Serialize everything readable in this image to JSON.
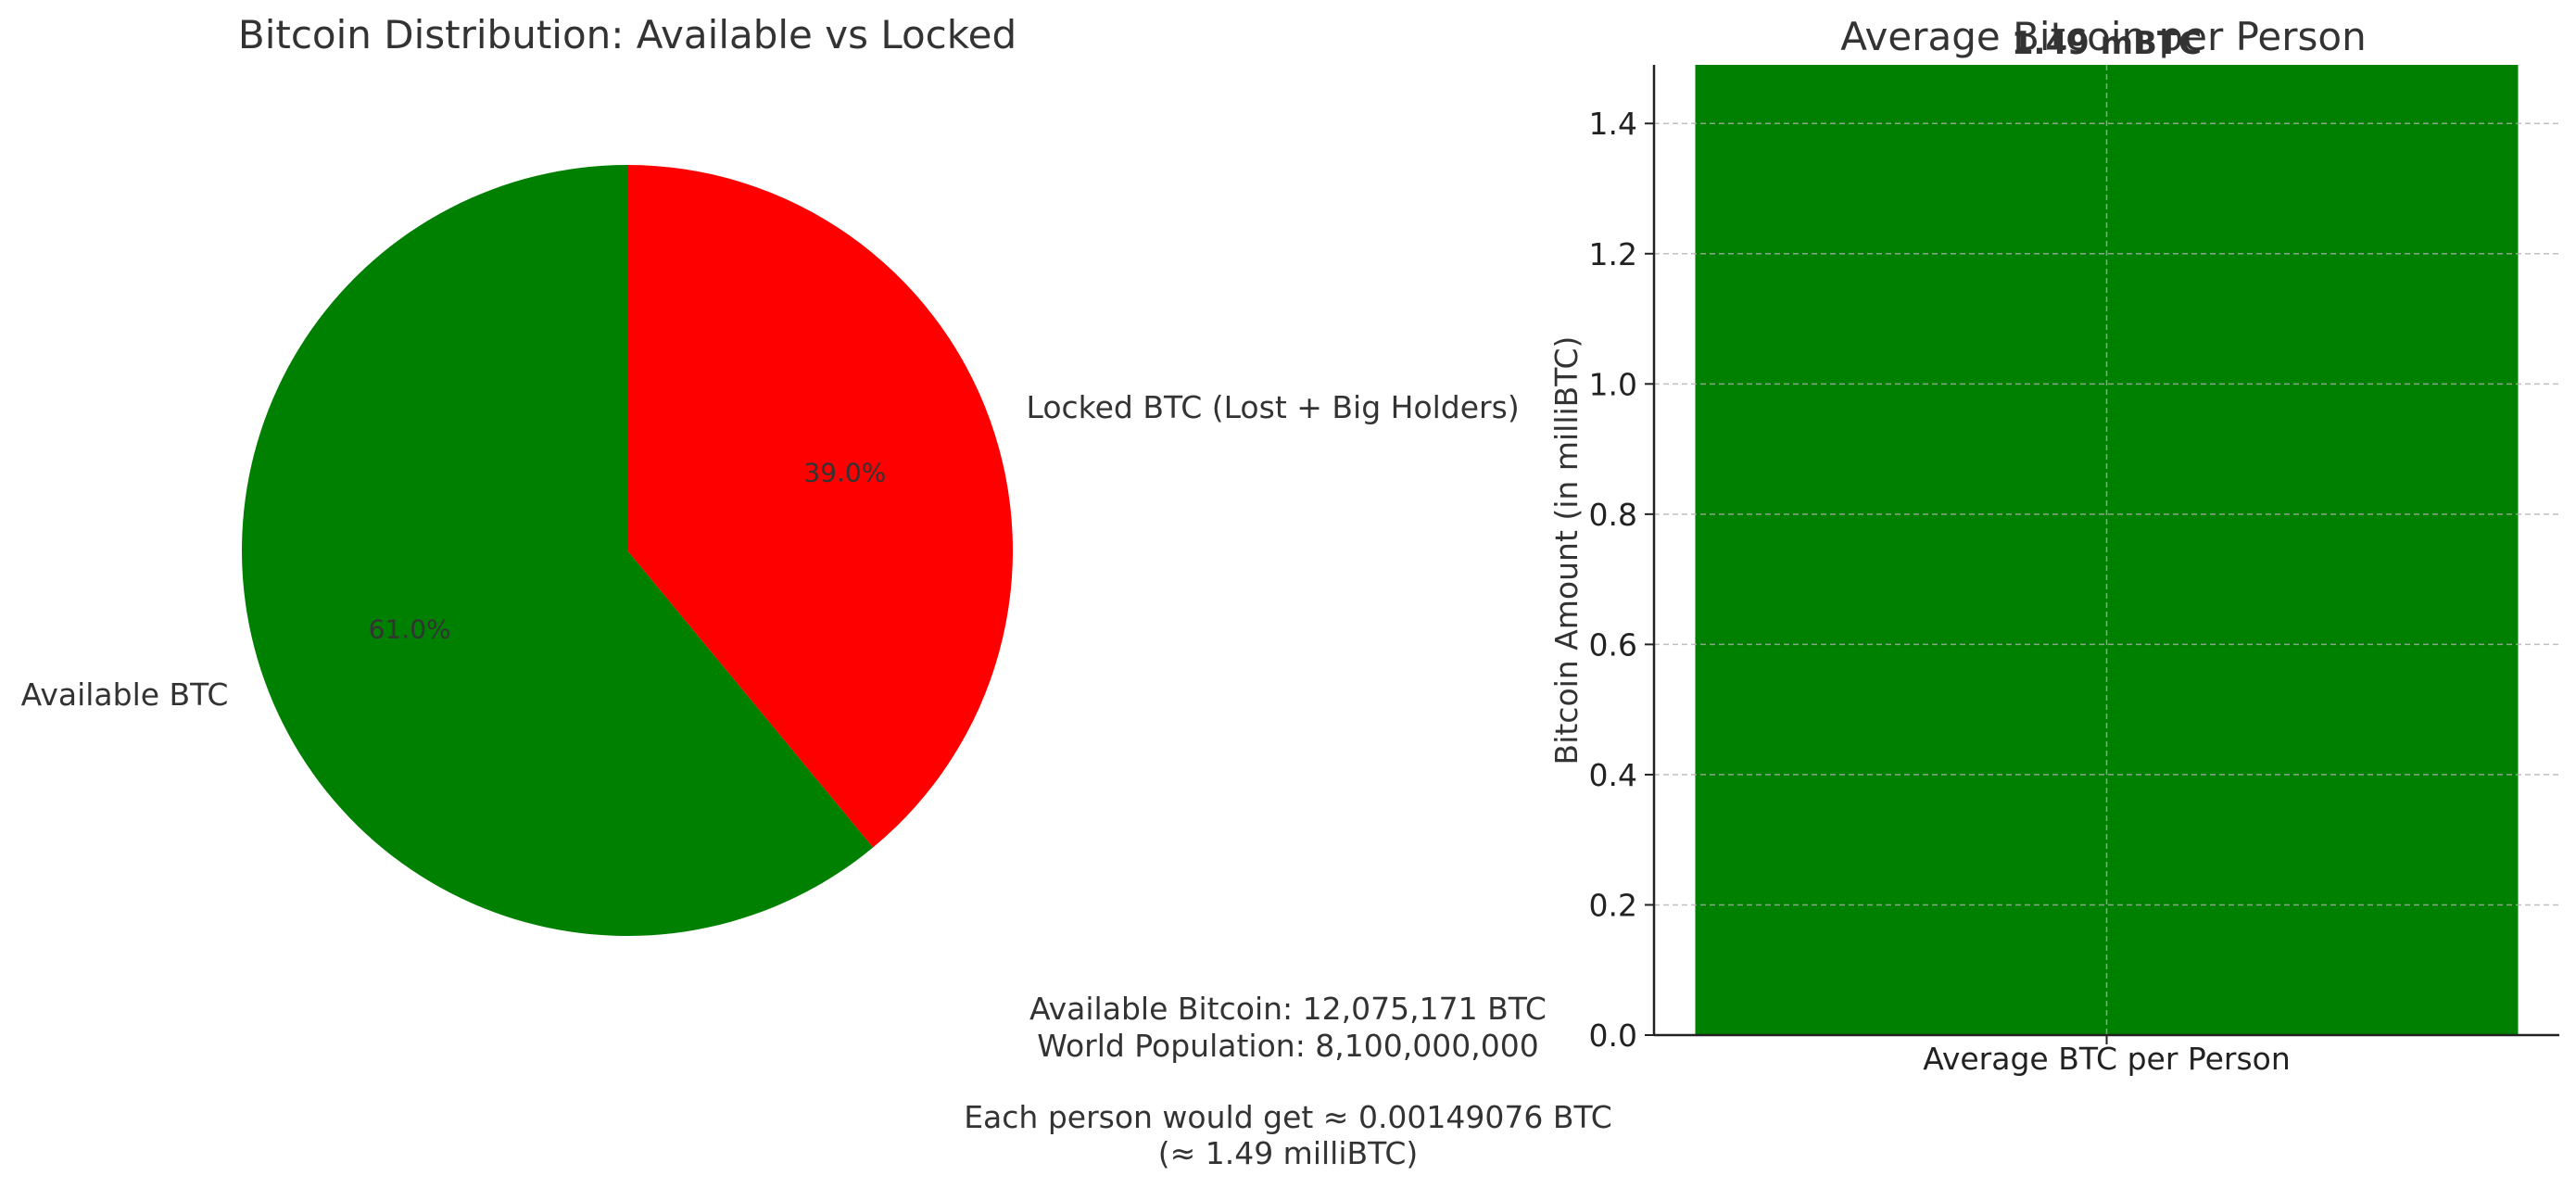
{
  "chart_data": [
    {
      "type": "pie",
      "title": "Bitcoin Distribution: Available vs Locked",
      "labels": [
        "Available BTC",
        "Locked BTC (Lost + Big Holders)"
      ],
      "values": [
        61.0,
        39.0
      ],
      "percent_labels": [
        "61.0%",
        "39.0%"
      ],
      "colors": [
        "#008000",
        "#ff0000"
      ],
      "start_angle_deg": 90,
      "direction": "counterclockwise"
    },
    {
      "type": "bar",
      "title": "Average Bitcoin per Person",
      "categories": [
        "Average BTC per Person"
      ],
      "values": [
        1.49
      ],
      "data_labels": [
        "1.49 mBTC"
      ],
      "xlabel": "",
      "ylabel": "Bitcoin Amount (in milliBTC)",
      "ylim": [
        0,
        1.49
      ],
      "yticks": [
        0.0,
        0.2,
        0.4,
        0.6,
        0.8,
        1.0,
        1.2,
        1.4
      ],
      "ytick_labels": [
        "0.0",
        "0.2",
        "0.4",
        "0.6",
        "0.8",
        "1.0",
        "1.2",
        "1.4"
      ],
      "grid": true,
      "color": "#008000"
    }
  ],
  "annotation": {
    "line1": "Available Bitcoin: 12,075,171 BTC",
    "line2": "World Population: 8,100,000,000",
    "line3": "Each person would get ≈ 0.00149076 BTC",
    "line4": "(≈ 1.49 milliBTC)"
  }
}
